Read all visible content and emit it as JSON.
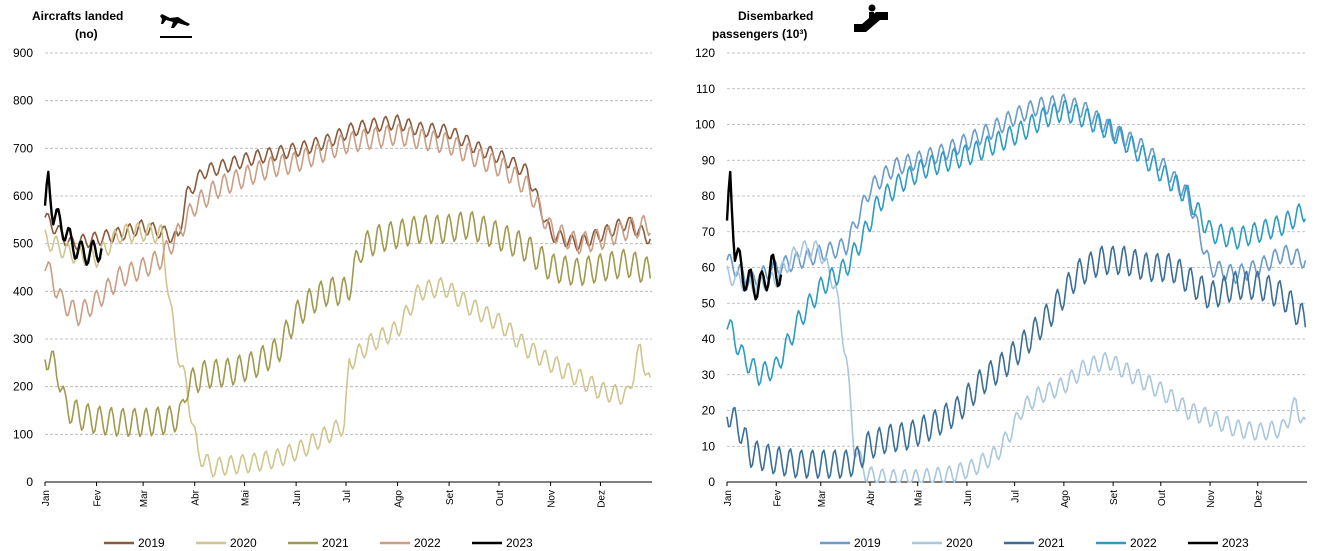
{
  "chart_data": [
    {
      "type": "line",
      "title_line1": "Aircrafts landed",
      "title_line2": "(no)",
      "icon": "airplane-landing-icon",
      "ylim": [
        0,
        900
      ],
      "yticks": [
        0,
        100,
        200,
        300,
        400,
        500,
        600,
        700,
        800,
        900
      ],
      "xticks": [
        "Jan",
        "Fev",
        "Mar",
        "Abr",
        "Mai",
        "Jun",
        "Jul",
        "Ago",
        "Set",
        "Out",
        "Nov",
        "Dez"
      ],
      "grid": "horizontal-dashed",
      "legend": "bottom",
      "series": [
        {
          "name": "2019",
          "color": "#8B5A3C",
          "points": [
            [
              0,
              555
            ],
            [
              15,
              500
            ],
            [
              31,
              510
            ],
            [
              45,
              520
            ],
            [
              58,
              535
            ],
            [
              70,
              525
            ],
            [
              80,
              510
            ],
            [
              85,
              600
            ],
            [
              95,
              650
            ],
            [
              110,
              665
            ],
            [
              125,
              680
            ],
            [
              140,
              690
            ],
            [
              155,
              700
            ],
            [
              170,
              715
            ],
            [
              185,
              740
            ],
            [
              200,
              750
            ],
            [
              212,
              755
            ],
            [
              225,
              740
            ],
            [
              243,
              735
            ],
            [
              260,
              700
            ],
            [
              275,
              680
            ],
            [
              290,
              650
            ],
            [
              304,
              520
            ],
            [
              320,
              500
            ],
            [
              335,
              520
            ],
            [
              350,
              545
            ],
            [
              364,
              510
            ]
          ],
          "amp": 30
        },
        {
          "name": "2020",
          "color": "#CFC68F",
          "points": [
            [
              0,
              510
            ],
            [
              15,
              480
            ],
            [
              31,
              470
            ],
            [
              45,
              520
            ],
            [
              58,
              525
            ],
            [
              70,
              520
            ],
            [
              78,
              300
            ],
            [
              85,
              200
            ],
            [
              92,
              60
            ],
            [
              100,
              30
            ],
            [
              110,
              35
            ],
            [
              125,
              40
            ],
            [
              140,
              50
            ],
            [
              155,
              70
            ],
            [
              170,
              100
            ],
            [
              180,
              120
            ],
            [
              183,
              250
            ],
            [
              195,
              290
            ],
            [
              212,
              320
            ],
            [
              225,
              400
            ],
            [
              240,
              410
            ],
            [
              255,
              370
            ],
            [
              275,
              330
            ],
            [
              290,
              280
            ],
            [
              304,
              250
            ],
            [
              320,
              220
            ],
            [
              335,
              190
            ],
            [
              350,
              180
            ],
            [
              358,
              280
            ],
            [
              364,
              200
            ]
          ],
          "amp": 40
        },
        {
          "name": "2021",
          "color": "#A09A50",
          "points": [
            [
              0,
              270
            ],
            [
              8,
              230
            ],
            [
              12,
              160
            ],
            [
              20,
              140
            ],
            [
              31,
              130
            ],
            [
              45,
              125
            ],
            [
              60,
              125
            ],
            [
              75,
              130
            ],
            [
              82,
              140
            ],
            [
              85,
              200
            ],
            [
              95,
              225
            ],
            [
              110,
              230
            ],
            [
              125,
              245
            ],
            [
              140,
              275
            ],
            [
              150,
              345
            ],
            [
              160,
              380
            ],
            [
              170,
              400
            ],
            [
              182,
              400
            ],
            [
              190,
              490
            ],
            [
              200,
              510
            ],
            [
              212,
              520
            ],
            [
              225,
              530
            ],
            [
              240,
              530
            ],
            [
              255,
              540
            ],
            [
              270,
              520
            ],
            [
              290,
              490
            ],
            [
              304,
              450
            ],
            [
              320,
              440
            ],
            [
              335,
              450
            ],
            [
              350,
              460
            ],
            [
              364,
              440
            ]
          ],
          "amp": 60
        },
        {
          "name": "2022",
          "color": "#C99E85",
          "points": [
            [
              0,
              460
            ],
            [
              10,
              380
            ],
            [
              20,
              350
            ],
            [
              31,
              380
            ],
            [
              45,
              430
            ],
            [
              60,
              450
            ],
            [
              70,
              470
            ],
            [
              80,
              520
            ],
            [
              90,
              580
            ],
            [
              105,
              620
            ],
            [
              120,
              640
            ],
            [
              135,
              660
            ],
            [
              150,
              670
            ],
            [
              165,
              690
            ],
            [
              180,
              710
            ],
            [
              195,
              720
            ],
            [
              212,
              730
            ],
            [
              225,
              720
            ],
            [
              243,
              710
            ],
            [
              260,
              680
            ],
            [
              275,
              660
            ],
            [
              290,
              620
            ],
            [
              304,
              530
            ],
            [
              320,
              500
            ],
            [
              335,
              510
            ],
            [
              350,
              530
            ],
            [
              364,
              540
            ]
          ],
          "amp": 45
        },
        {
          "name": "2023",
          "color": "#000000",
          "points": [
            [
              0,
              560
            ],
            [
              2,
              640
            ],
            [
              5,
              560
            ],
            [
              10,
              540
            ],
            [
              16,
              500
            ],
            [
              22,
              480
            ],
            [
              28,
              480
            ],
            [
              34,
              490
            ]
          ],
          "amp": 50
        }
      ]
    },
    {
      "type": "line",
      "title_line1": "Disembarked",
      "title_line2": "passengers  (10³)",
      "icon": "escalator-icon",
      "ylim": [
        0,
        120
      ],
      "yticks": [
        0,
        10,
        20,
        30,
        40,
        50,
        60,
        70,
        80,
        90,
        100,
        110,
        120
      ],
      "xticks": [
        "Jan",
        "Fev",
        "Mar",
        "Abr",
        "Mai",
        "Jun",
        "Jul",
        "Ago",
        "Set",
        "Out",
        "Nov",
        "Dez"
      ],
      "grid": "horizontal-dashed",
      "legend": "bottom",
      "series": [
        {
          "name": "2019",
          "color": "#6A9BCB",
          "points": [
            [
              0,
              62
            ],
            [
              15,
              56
            ],
            [
              31,
              60
            ],
            [
              45,
              62
            ],
            [
              60,
              64
            ],
            [
              75,
              66
            ],
            [
              90,
              82
            ],
            [
              105,
              88
            ],
            [
              120,
              90
            ],
            [
              135,
              92
            ],
            [
              150,
              95
            ],
            [
              165,
              98
            ],
            [
              180,
              102
            ],
            [
              195,
              105
            ],
            [
              212,
              106
            ],
            [
              225,
              104
            ],
            [
              243,
              98
            ],
            [
              260,
              94
            ],
            [
              275,
              88
            ],
            [
              290,
              80
            ],
            [
              304,
              60
            ],
            [
              320,
              58
            ],
            [
              335,
              60
            ],
            [
              350,
              64
            ],
            [
              364,
              62
            ]
          ],
          "amp": 5
        },
        {
          "name": "2020",
          "color": "#A9C7DD",
          "points": [
            [
              0,
              58
            ],
            [
              15,
              55
            ],
            [
              31,
              57
            ],
            [
              45,
              65
            ],
            [
              58,
              65
            ],
            [
              68,
              55
            ],
            [
              75,
              35
            ],
            [
              80,
              10
            ],
            [
              88,
              2
            ],
            [
              100,
              1
            ],
            [
              120,
              1
            ],
            [
              140,
              2
            ],
            [
              155,
              4
            ],
            [
              170,
              8
            ],
            [
              180,
              15
            ],
            [
              185,
              20
            ],
            [
              195,
              24
            ],
            [
              212,
              27
            ],
            [
              225,
              32
            ],
            [
              240,
              34
            ],
            [
              255,
              30
            ],
            [
              275,
              25
            ],
            [
              290,
              20
            ],
            [
              304,
              18
            ],
            [
              320,
              15
            ],
            [
              335,
              14
            ],
            [
              350,
              15
            ],
            [
              358,
              22
            ],
            [
              364,
              15
            ]
          ],
          "amp": 5
        },
        {
          "name": "2021",
          "color": "#3D6F96",
          "points": [
            [
              0,
              20
            ],
            [
              8,
              15
            ],
            [
              15,
              8
            ],
            [
              31,
              6
            ],
            [
              45,
              5
            ],
            [
              60,
              5
            ],
            [
              75,
              5
            ],
            [
              82,
              6
            ],
            [
              88,
              10
            ],
            [
              100,
              12
            ],
            [
              115,
              13
            ],
            [
              130,
              16
            ],
            [
              145,
              20
            ],
            [
              160,
              28
            ],
            [
              175,
              33
            ],
            [
              190,
              40
            ],
            [
              205,
              48
            ],
            [
              220,
              58
            ],
            [
              235,
              62
            ],
            [
              250,
              62
            ],
            [
              265,
              60
            ],
            [
              280,
              60
            ],
            [
              295,
              55
            ],
            [
              304,
              52
            ],
            [
              320,
              55
            ],
            [
              335,
              55
            ],
            [
              350,
              52
            ],
            [
              364,
              45
            ]
          ],
          "amp": 8
        },
        {
          "name": "2022",
          "color": "#2D9BC2",
          "points": [
            [
              0,
              45
            ],
            [
              10,
              35
            ],
            [
              20,
              30
            ],
            [
              31,
              32
            ],
            [
              45,
              45
            ],
            [
              60,
              55
            ],
            [
              75,
              60
            ],
            [
              85,
              68
            ],
            [
              95,
              78
            ],
            [
              110,
              84
            ],
            [
              125,
              88
            ],
            [
              140,
              90
            ],
            [
              155,
              92
            ],
            [
              170,
              95
            ],
            [
              185,
              98
            ],
            [
              200,
              102
            ],
            [
              212,
              104
            ],
            [
              225,
              102
            ],
            [
              243,
              98
            ],
            [
              260,
              92
            ],
            [
              275,
              86
            ],
            [
              290,
              80
            ],
            [
              304,
              70
            ],
            [
              320,
              68
            ],
            [
              335,
              70
            ],
            [
              350,
              72
            ],
            [
              364,
              76
            ]
          ],
          "amp": 6
        },
        {
          "name": "2023",
          "color": "#000000",
          "points": [
            [
              0,
              70
            ],
            [
              2,
              85
            ],
            [
              5,
              65
            ],
            [
              10,
              58
            ],
            [
              16,
              55
            ],
            [
              22,
              55
            ],
            [
              28,
              60
            ],
            [
              34,
              58
            ]
          ],
          "amp": 8
        }
      ]
    }
  ]
}
